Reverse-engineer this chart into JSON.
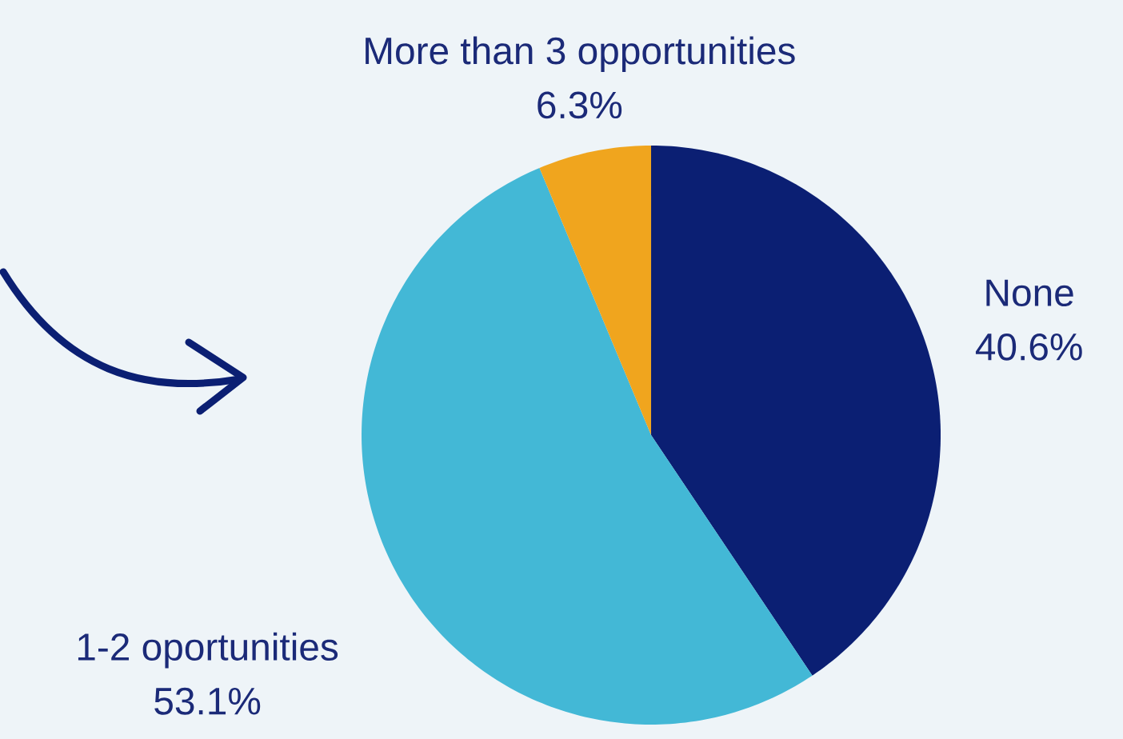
{
  "chart_data": {
    "type": "pie",
    "categories": [
      "None",
      "1-2 oportunities",
      "More than 3 opportunities"
    ],
    "values": [
      40.6,
      53.1,
      6.3
    ],
    "value_labels": [
      "40.6%",
      "53.1%",
      "6.3%"
    ],
    "colors": [
      "#0b1f73",
      "#43b8d6",
      "#f0a51e"
    ]
  }
}
